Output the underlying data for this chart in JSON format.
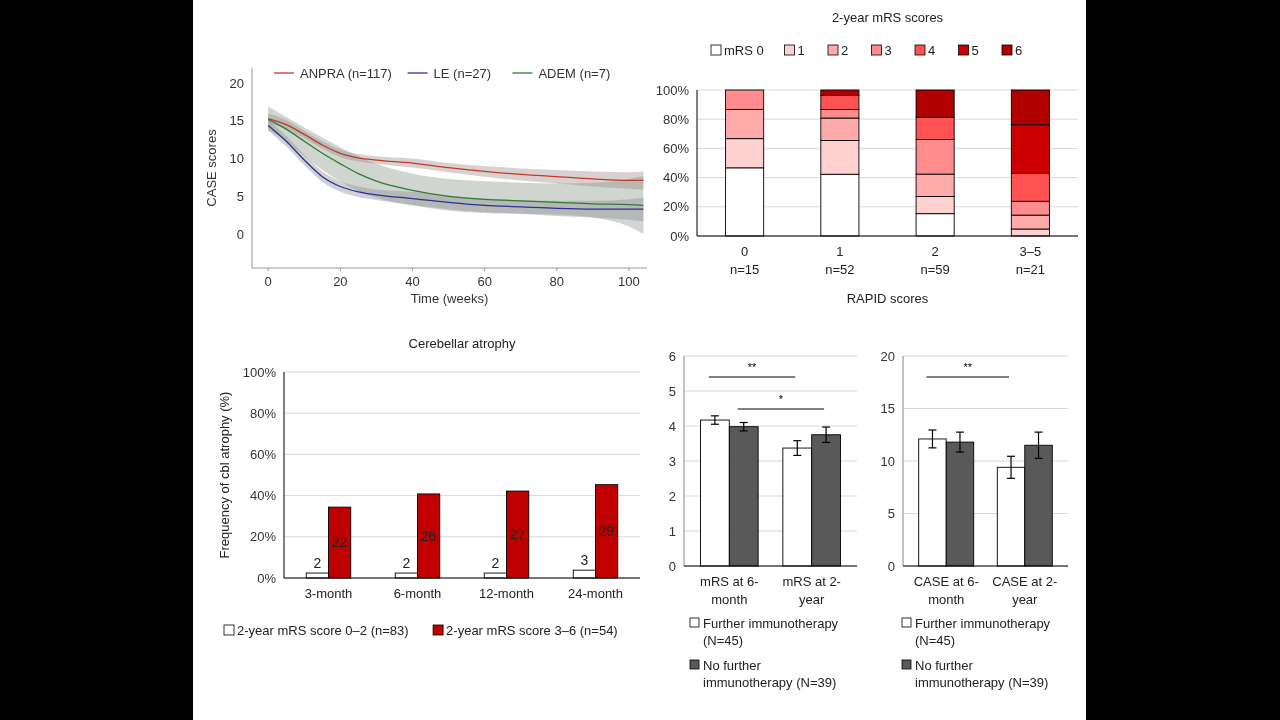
{
  "chart_data": [
    {
      "type": "line",
      "xlabel": "Time (weeks)",
      "ylabel": "CASE scores",
      "xlim": [
        -4.5,
        105
      ],
      "ylim": [
        -4.5,
        22
      ],
      "xticks": [
        0,
        20,
        40,
        60,
        80,
        100
      ],
      "yticks": [
        0,
        5,
        10,
        15,
        20
      ],
      "legend": "top",
      "grid": false,
      "x": [
        0,
        5,
        10,
        15,
        20,
        25,
        30,
        40,
        50,
        60,
        70,
        80,
        90,
        100,
        104
      ],
      "series": [
        {
          "name": "ANPRA (n=117)",
          "color": "#c0392b",
          "values": [
            15.3,
            14.5,
            13.2,
            11.8,
            10.7,
            10.1,
            9.8,
            9.4,
            8.8,
            8.3,
            7.9,
            7.6,
            7.3,
            7.1,
            7.1
          ],
          "lower": [
            14.6,
            13.9,
            12.7,
            11.3,
            10.2,
            9.6,
            9.3,
            8.8,
            8.2,
            7.6,
            7.1,
            6.7,
            6.3,
            6.0,
            5.9
          ],
          "upper": [
            16.0,
            15.1,
            13.7,
            12.3,
            11.2,
            10.6,
            10.3,
            10.0,
            9.4,
            9.0,
            8.7,
            8.5,
            8.3,
            8.2,
            8.3
          ]
        },
        {
          "name": "LE (n=27)",
          "color": "#2e3192",
          "values": [
            14.4,
            12.3,
            9.8,
            7.6,
            6.3,
            5.6,
            5.2,
            4.7,
            4.2,
            3.8,
            3.6,
            3.4,
            3.3,
            3.3,
            3.3
          ],
          "lower": [
            13.7,
            11.6,
            9.1,
            6.9,
            5.6,
            4.9,
            4.5,
            3.8,
            3.3,
            2.9,
            2.7,
            2.4,
            2.2,
            1.9,
            1.7
          ],
          "upper": [
            15.1,
            13.0,
            10.5,
            8.3,
            7.0,
            6.3,
            5.9,
            5.6,
            5.1,
            4.7,
            4.5,
            4.4,
            4.4,
            4.6,
            4.8
          ]
        },
        {
          "name": "ADEM (n=7)",
          "color": "#2e7d32",
          "values": [
            15.2,
            13.9,
            12.3,
            10.7,
            9.3,
            8.0,
            7.0,
            5.8,
            5.0,
            4.6,
            4.4,
            4.2,
            4.0,
            3.9,
            3.8
          ],
          "lower": [
            13.8,
            12.3,
            10.3,
            8.5,
            7.0,
            5.7,
            4.8,
            3.8,
            3.1,
            2.8,
            2.7,
            2.6,
            2.2,
            1.0,
            0.0
          ],
          "upper": [
            16.9,
            15.5,
            14.1,
            12.8,
            11.5,
            10.3,
            9.3,
            8.0,
            7.3,
            7.0,
            6.8,
            6.7,
            6.8,
            7.3,
            7.7
          ]
        }
      ]
    },
    {
      "type": "bar",
      "stacked": true,
      "title": "2-year mRS scores",
      "xlabel": "RAPID scores",
      "categories": [
        "0\nn=15",
        "1\nn=52",
        "2\nn=59",
        "3–5\nn=21"
      ],
      "ylim": [
        0,
        100
      ],
      "yticks": [
        {
          "value": 0,
          "label": "0%"
        },
        {
          "value": 20,
          "label": "20%"
        },
        {
          "value": 40,
          "label": "40%"
        },
        {
          "value": 60,
          "label": "60%"
        },
        {
          "value": 80,
          "label": "80%"
        },
        {
          "value": 100,
          "label": "100%"
        }
      ],
      "grid": "y",
      "legend": "top",
      "series": [
        {
          "name": "mRS 0",
          "color": "#ffffff",
          "values": [
            46.7,
            42.3,
            15.3,
            0
          ]
        },
        {
          "name": "1",
          "color": "#ffd0d0",
          "values": [
            20,
            23.1,
            11.8,
            4.8
          ]
        },
        {
          "name": "2",
          "color": "#ffabab",
          "values": [
            20,
            15.4,
            15.3,
            9.5
          ]
        },
        {
          "name": "3",
          "color": "#ff8c8c",
          "values": [
            13.3,
            5.8,
            23.7,
            9.5
          ]
        },
        {
          "name": "4",
          "color": "#ff5353",
          "values": [
            0,
            9.6,
            15.3,
            19.0
          ]
        },
        {
          "name": "5",
          "color": "#cc0000",
          "values": [
            0,
            0,
            0,
            33.4
          ]
        },
        {
          "name": "6",
          "color": "#b00000",
          "values": [
            0,
            3.8,
            18.6,
            23.8
          ]
        }
      ]
    },
    {
      "type": "bar",
      "title": "Cerebellar atrophy",
      "ylabel": "Frequency of cbl atrophy (%)",
      "categories": [
        "3-month",
        "6-month",
        "12-month",
        "24-month"
      ],
      "ylim": [
        0,
        100
      ],
      "yticks": [
        {
          "value": 0,
          "label": "0%"
        },
        {
          "value": 20,
          "label": "20%"
        },
        {
          "value": 40,
          "label": "40%"
        },
        {
          "value": 60,
          "label": "60%"
        },
        {
          "value": 80,
          "label": "80%"
        },
        {
          "value": 100,
          "label": "100%"
        }
      ],
      "grid": "y",
      "legend": "bottom",
      "annotations": [
        {
          "text": "22",
          "x": "3-month",
          "y": 34.4
        },
        {
          "text": "26",
          "x": "6-month",
          "y": 40.8
        },
        {
          "text": "27",
          "x": "12-month",
          "y": 42.2
        },
        {
          "text": "29",
          "x": "24-month",
          "y": 45.3
        },
        {
          "text": "2",
          "x": "3-month",
          "y": 2.4
        },
        {
          "text": "2",
          "x": "6-month",
          "y": 2.4
        },
        {
          "text": "2",
          "x": "12-month",
          "y": 2.4
        },
        {
          "text": "3",
          "x": "24-month",
          "y": 3.8
        }
      ],
      "series": [
        {
          "name": "2-year mRS score 0–2 (n=83)",
          "color": "#ffffff",
          "values": [
            2.4,
            2.4,
            2.4,
            3.8
          ]
        },
        {
          "name": "2-year mRS score 3–6 (n=54)",
          "color": "#c00000",
          "values": [
            34.4,
            40.8,
            42.2,
            45.3
          ]
        }
      ]
    },
    {
      "type": "bar",
      "categories": [
        "mRS at 6-month",
        "mRS at 2-year"
      ],
      "ylim": [
        0,
        6
      ],
      "yticks": [
        0,
        1,
        2,
        3,
        4,
        5,
        6
      ],
      "grid": "y",
      "legend": "bottom",
      "annotations": [
        "**",
        "*"
      ],
      "series": [
        {
          "name": "Further immunotherapy (N=45)",
          "color": "#ffffff",
          "values": [
            4.17,
            3.37
          ],
          "errors": [
            0.12,
            0.21
          ]
        },
        {
          "name": "No further immunotherapy (N=39)",
          "color": "#595959",
          "values": [
            3.98,
            3.75
          ],
          "errors": [
            0.12,
            0.22
          ]
        }
      ]
    },
    {
      "type": "bar",
      "categories": [
        "CASE at 6-month",
        "CASE at 2-year"
      ],
      "ylim": [
        0,
        20
      ],
      "yticks": [
        0,
        5,
        10,
        15,
        20
      ],
      "grid": "y",
      "legend": "bottom",
      "annotations": [
        "**"
      ],
      "series": [
        {
          "name": "Further immunotherapy (N=45)",
          "color": "#ffffff",
          "values": [
            12.1,
            9.4
          ],
          "errors": [
            0.85,
            1.05
          ]
        },
        {
          "name": "No further immunotherapy (N=39)",
          "color": "#595959",
          "values": [
            11.8,
            11.5
          ],
          "errors": [
            0.95,
            1.25
          ]
        }
      ]
    }
  ]
}
